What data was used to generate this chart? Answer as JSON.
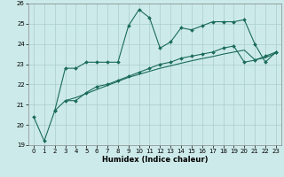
{
  "xlabel": "Humidex (Indice chaleur)",
  "ylabel": "",
  "bg_color": "#cdeaea",
  "grid_color": "#aacccc",
  "line_color": "#1a6b5a",
  "xlim": [
    -0.5,
    23.5
  ],
  "ylim": [
    19,
    26
  ],
  "yticks": [
    19,
    20,
    21,
    22,
    23,
    24,
    25,
    26
  ],
  "xticks": [
    0,
    1,
    2,
    3,
    4,
    5,
    6,
    7,
    8,
    9,
    10,
    11,
    12,
    13,
    14,
    15,
    16,
    17,
    18,
    19,
    20,
    21,
    22,
    23
  ],
  "line1_x": [
    0,
    1,
    2,
    3,
    4,
    5,
    6,
    7,
    8,
    9,
    10,
    11,
    12,
    13,
    14,
    15,
    16,
    17,
    18,
    19,
    20,
    21,
    22,
    23
  ],
  "line1_y": [
    20.4,
    19.2,
    20.7,
    22.8,
    22.8,
    23.1,
    23.1,
    23.1,
    23.1,
    24.9,
    25.7,
    25.3,
    23.8,
    24.1,
    24.8,
    24.7,
    24.9,
    25.1,
    25.1,
    25.1,
    25.2,
    24.0,
    23.1,
    23.6
  ],
  "line2_x": [
    2,
    3,
    4,
    5,
    6,
    7,
    8,
    9,
    10,
    11,
    12,
    13,
    14,
    15,
    16,
    17,
    18,
    19,
    20,
    21,
    22,
    23
  ],
  "line2_y": [
    20.7,
    21.2,
    21.2,
    21.6,
    21.9,
    22.0,
    22.2,
    22.4,
    22.6,
    22.8,
    23.0,
    23.1,
    23.3,
    23.4,
    23.5,
    23.6,
    23.8,
    23.9,
    23.1,
    23.2,
    23.4,
    23.6
  ],
  "line3_x": [
    3,
    4,
    5,
    6,
    7,
    8,
    9,
    10,
    11,
    12,
    13,
    14,
    15,
    16,
    17,
    18,
    19,
    20,
    21,
    22,
    23
  ],
  "line3_y": [
    21.2,
    21.35,
    21.55,
    21.75,
    21.95,
    22.15,
    22.35,
    22.5,
    22.65,
    22.8,
    22.92,
    23.05,
    23.17,
    23.28,
    23.38,
    23.5,
    23.6,
    23.7,
    23.22,
    23.32,
    23.55
  ]
}
